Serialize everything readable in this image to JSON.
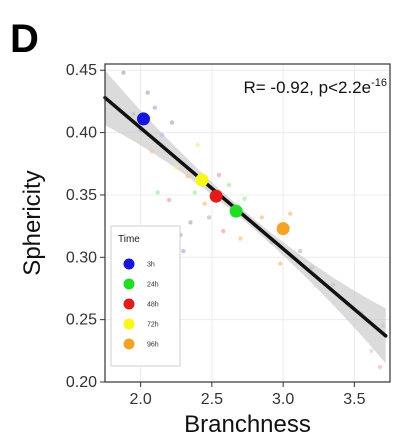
{
  "panel_label": "D",
  "chart_data": {
    "type": "scatter",
    "xlabel": "Branchness",
    "ylabel": "Sphericity",
    "xlim": [
      1.75,
      3.75
    ],
    "ylim": [
      0.2,
      0.455
    ],
    "x_ticks": [
      2.0,
      2.5,
      3.0,
      3.5
    ],
    "x_tick_labels": [
      "2.0",
      "2.5",
      "3.0",
      "3.5"
    ],
    "y_ticks": [
      0.2,
      0.25,
      0.3,
      0.35,
      0.4,
      0.45
    ],
    "y_tick_labels": [
      "0.20",
      "0.25",
      "0.30",
      "0.35",
      "0.40",
      "0.45"
    ],
    "annotation": {
      "text": "R= -0.92, p<2.2e",
      "superscript": "-16"
    },
    "regression": {
      "x0": 1.75,
      "y0": 0.428,
      "x1": 3.72,
      "y1": 0.237
    },
    "legend": {
      "title": "Time",
      "position": "bottom-left",
      "entries": [
        {
          "label": "3h",
          "color": "#1515dd"
        },
        {
          "label": "24h",
          "color": "#22dd22"
        },
        {
          "label": "48h",
          "color": "#e21b1b"
        },
        {
          "label": "72h",
          "color": "#f7f71a"
        },
        {
          "label": "96h",
          "color": "#f5a326"
        }
      ]
    },
    "group_means": [
      {
        "label": "3h",
        "x": 2.02,
        "y": 0.411,
        "color": "#1515dd"
      },
      {
        "label": "24h",
        "x": 2.67,
        "y": 0.337,
        "color": "#22dd22"
      },
      {
        "label": "48h",
        "x": 2.53,
        "y": 0.349,
        "color": "#e21b1b"
      },
      {
        "label": "72h",
        "x": 2.43,
        "y": 0.362,
        "color": "#f7f71a"
      },
      {
        "label": "96h",
        "x": 3.0,
        "y": 0.323,
        "color": "#f5a326"
      }
    ],
    "raw_points": [
      {
        "x": 1.88,
        "y": 0.448,
        "color": "#b4b4b4"
      },
      {
        "x": 2.05,
        "y": 0.432,
        "color": "#b4b4b4"
      },
      {
        "x": 2.1,
        "y": 0.42,
        "color": "#b0b0e8"
      },
      {
        "x": 2.0,
        "y": 0.402,
        "color": "#b0b0e8"
      },
      {
        "x": 2.15,
        "y": 0.398,
        "color": "#c0c0ec"
      },
      {
        "x": 1.95,
        "y": 0.415,
        "color": "#c4c4c4"
      },
      {
        "x": 2.22,
        "y": 0.408,
        "color": "#b4b4b4"
      },
      {
        "x": 2.08,
        "y": 0.385,
        "color": "#e8cfa0"
      },
      {
        "x": 2.25,
        "y": 0.372,
        "color": "#f0ee9a"
      },
      {
        "x": 2.33,
        "y": 0.365,
        "color": "#f5c88a"
      },
      {
        "x": 2.38,
        "y": 0.352,
        "color": "#a8ecb0"
      },
      {
        "x": 2.2,
        "y": 0.346,
        "color": "#f0a8a8"
      },
      {
        "x": 2.45,
        "y": 0.343,
        "color": "#f5c88a"
      },
      {
        "x": 2.55,
        "y": 0.366,
        "color": "#f0a8a8"
      },
      {
        "x": 2.62,
        "y": 0.358,
        "color": "#a8ecb0"
      },
      {
        "x": 2.48,
        "y": 0.332,
        "color": "#c4c4c4"
      },
      {
        "x": 2.73,
        "y": 0.347,
        "color": "#a8ecb0"
      },
      {
        "x": 2.58,
        "y": 0.321,
        "color": "#f0a8a8"
      },
      {
        "x": 2.7,
        "y": 0.315,
        "color": "#f5c88a"
      },
      {
        "x": 2.35,
        "y": 0.328,
        "color": "#b4b4b4"
      },
      {
        "x": 2.28,
        "y": 0.318,
        "color": "#b0b0e8"
      },
      {
        "x": 2.85,
        "y": 0.332,
        "color": "#f5c88a"
      },
      {
        "x": 2.92,
        "y": 0.312,
        "color": "#c4c4c4"
      },
      {
        "x": 3.05,
        "y": 0.335,
        "color": "#f5c88a"
      },
      {
        "x": 3.12,
        "y": 0.305,
        "color": "#c4c4c4"
      },
      {
        "x": 2.98,
        "y": 0.295,
        "color": "#f5c88a"
      },
      {
        "x": 3.2,
        "y": 0.292,
        "color": "#c4c4c4"
      },
      {
        "x": 3.35,
        "y": 0.278,
        "color": "#c4c4c4"
      },
      {
        "x": 3.45,
        "y": 0.262,
        "color": "#f5c88a"
      },
      {
        "x": 3.55,
        "y": 0.255,
        "color": "#c4c4c4"
      },
      {
        "x": 3.62,
        "y": 0.225,
        "color": "#d8d8d8"
      },
      {
        "x": 3.68,
        "y": 0.212,
        "color": "#f0c0c0"
      },
      {
        "x": 3.7,
        "y": 0.245,
        "color": "#c8c8c8"
      },
      {
        "x": 2.4,
        "y": 0.39,
        "color": "#f0ee9a"
      },
      {
        "x": 2.12,
        "y": 0.352,
        "color": "#a8ecb0"
      },
      {
        "x": 2.3,
        "y": 0.305,
        "color": "#b0b0e8"
      }
    ]
  }
}
